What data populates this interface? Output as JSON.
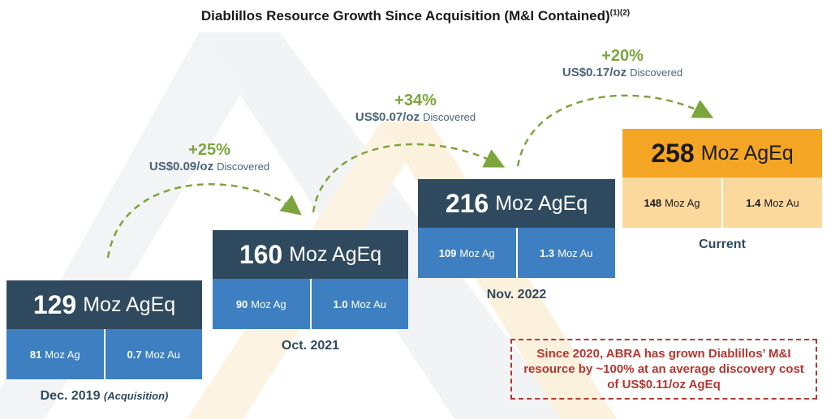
{
  "title": "Diablillos Resource Growth Since Acquisition (M&I Contained)",
  "title_footnote": "(1)(2)",
  "stages": [
    {
      "total_value": "129",
      "total_unit": "Moz AgEq",
      "ag_value": "81",
      "ag_unit": "Moz Ag",
      "au_value": "0.7",
      "au_unit": "Moz Au",
      "date": "Dec. 2019",
      "date_note": "(Acquisition)"
    },
    {
      "total_value": "160",
      "total_unit": "Moz AgEq",
      "ag_value": "90",
      "ag_unit": "Moz Ag",
      "au_value": "1.0",
      "au_unit": "Moz Au",
      "date": "Oct. 2021"
    },
    {
      "total_value": "216",
      "total_unit": "Moz AgEq",
      "ag_value": "109",
      "ag_unit": "Moz Ag",
      "au_value": "1.3",
      "au_unit": "Moz Au",
      "date": "Nov. 2022"
    },
    {
      "total_value": "258",
      "total_unit": "Moz AgEq",
      "ag_value": "148",
      "ag_unit": "Moz Ag",
      "au_value": "1.4",
      "au_unit": "Moz Au",
      "date": "Current"
    }
  ],
  "growth": [
    {
      "pct": "+25%",
      "cost": "US$0.09/oz",
      "cost_label": "Discovered"
    },
    {
      "pct": "+34%",
      "cost": "US$0.07/oz",
      "cost_label": "Discovered"
    },
    {
      "pct": "+20%",
      "cost": "US$0.17/oz",
      "cost_label": "Discovered"
    }
  ],
  "note": "Since 2020, ABRA has grown Diablillos’ M&I resource by ~100% at an average discovery cost of US$0.11/oz AgEq",
  "colors": {
    "navy": "#2f4a5e",
    "blue": "#3d7fc1",
    "orange": "#f4a524",
    "light_orange": "#fbd99c",
    "green": "#7ca53c",
    "red": "#b5362f"
  }
}
